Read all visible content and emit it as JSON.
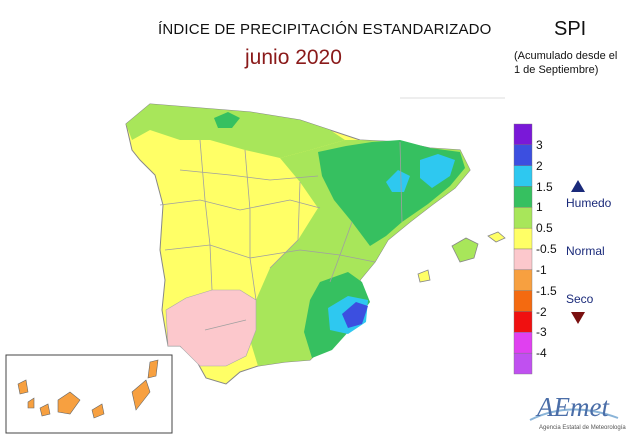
{
  "header": {
    "title": "ÍNDICE DE PRECIPITACIÓN ESTANDARIZADO",
    "subtitle": "junio 2020",
    "index_name": "SPI",
    "accumulation_line1": "(Acumulado desde el",
    "accumulation_line2": "1 de Septiembre)"
  },
  "legend": {
    "bins": [
      {
        "label": "3",
        "color": "#7a18d8"
      },
      {
        "label": "2",
        "color": "#3c4fe0"
      },
      {
        "label": "1.5",
        "color": "#2ec8f0"
      },
      {
        "label": "1",
        "color": "#36c060"
      },
      {
        "label": "0.5",
        "color": "#a8e65a"
      },
      {
        "label": "-0.5",
        "color": "#ffff66"
      },
      {
        "label": "-1",
        "color": "#fcc8cc"
      },
      {
        "label": "-1.5",
        "color": "#f7a040"
      },
      {
        "label": "-2",
        "color": "#f46a10"
      },
      {
        "label": "-3",
        "color": "#f01010"
      },
      {
        "label": "-4",
        "color": "#e040f0"
      },
      {
        "label": "",
        "color": "#c050f0"
      }
    ],
    "wet_label": "Humedo",
    "normal_label": "Normal",
    "dry_label": "Seco",
    "wet_color": "#1a2a7a",
    "dry_color": "#7a1010"
  },
  "logo": {
    "name": "AEmet",
    "caption": "Agencia Estatal de Meteorología"
  }
}
